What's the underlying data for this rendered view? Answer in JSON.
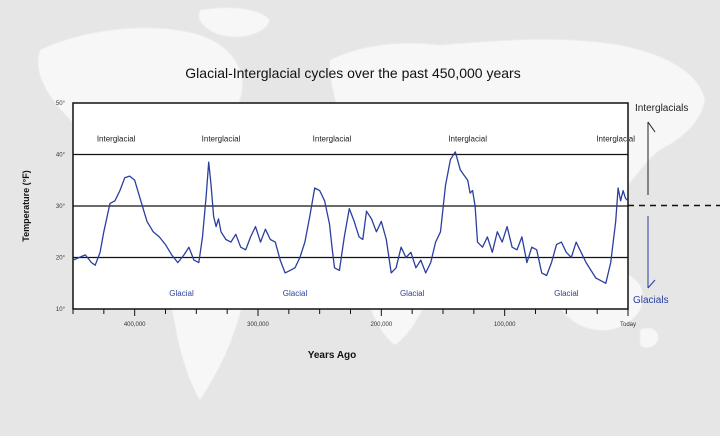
{
  "chart_data": {
    "type": "line",
    "title": "Glacial-Interglacial cycles over the past 450,000 years",
    "xlabel": "Years Ago",
    "ylabel": "Temperature (°F)",
    "xlim": [
      450000,
      0
    ],
    "ylim": [
      10,
      50
    ],
    "xticks": [
      400000,
      300000,
      200000,
      100000,
      0
    ],
    "xtick_labels": [
      "400,000",
      "300,000",
      "200,000",
      "100,000",
      "Today"
    ],
    "yticks": [
      10,
      20,
      30,
      40,
      50
    ],
    "ytick_labels": [
      "10°",
      "20°",
      "30°",
      "40°",
      "50°"
    ],
    "reference_lines": [
      20,
      30,
      40
    ],
    "line_color": "#2b3f9e",
    "annotations": {
      "interglacial": [
        {
          "label": "Interglacial",
          "x": 415000,
          "y": 42.5
        },
        {
          "label": "Interglacial",
          "x": 330000,
          "y": 42.5
        },
        {
          "label": "Interglacial",
          "x": 240000,
          "y": 42.5
        },
        {
          "label": "Interglacial",
          "x": 130000,
          "y": 42.5
        },
        {
          "label": "Interglacial",
          "x": 10000,
          "y": 42.5
        }
      ],
      "glacial": [
        {
          "label": "Glacial",
          "x": 362000,
          "y": 12.5
        },
        {
          "label": "Glacial",
          "x": 270000,
          "y": 12.5
        },
        {
          "label": "Glacial",
          "x": 175000,
          "y": 12.5
        },
        {
          "label": "Glacial",
          "x": 50000,
          "y": 12.5
        }
      ]
    },
    "side_labels": {
      "top": "Interglacials",
      "bottom": "Glacials"
    },
    "x": [
      450000,
      445000,
      440000,
      435000,
      432000,
      428000,
      425000,
      420000,
      416000,
      412000,
      408000,
      404000,
      400000,
      395000,
      390000,
      385000,
      380000,
      375000,
      370000,
      365000,
      360000,
      356000,
      352000,
      348000,
      345000,
      342000,
      340000,
      338000,
      336000,
      334000,
      332000,
      330000,
      326000,
      322000,
      318000,
      314000,
      310000,
      306000,
      302000,
      298000,
      294000,
      290000,
      286000,
      282000,
      278000,
      274000,
      270000,
      266000,
      262000,
      258000,
      254000,
      250000,
      246000,
      242000,
      240000,
      238000,
      234000,
      230000,
      226000,
      222000,
      218000,
      215000,
      212000,
      208000,
      204000,
      200000,
      196000,
      192000,
      188000,
      184000,
      180000,
      176000,
      172000,
      168000,
      164000,
      160000,
      156000,
      152000,
      148000,
      144000,
      140000,
      136000,
      133000,
      130000,
      128000,
      126000,
      124000,
      122000,
      118000,
      114000,
      110000,
      106000,
      102000,
      98000,
      94000,
      90000,
      86000,
      82000,
      78000,
      74000,
      70000,
      66000,
      62000,
      58000,
      54000,
      50000,
      46000,
      42000,
      38000,
      34000,
      30000,
      26000,
      22000,
      18000,
      14000,
      10000,
      8000,
      6000,
      4000,
      2000,
      0
    ],
    "y": [
      19.5,
      20,
      20.5,
      19,
      18.5,
      21,
      25,
      30.5,
      31,
      33,
      35.5,
      35.8,
      35,
      31,
      27,
      25,
      24,
      22.5,
      20.5,
      19,
      20.5,
      22,
      19.5,
      19,
      24,
      32,
      38.5,
      34,
      28,
      26,
      27.5,
      25,
      23.5,
      23,
      24.5,
      22,
      21.5,
      24,
      26,
      23,
      25.5,
      23.5,
      23,
      19.5,
      17,
      17.5,
      18,
      20,
      23,
      28,
      33.5,
      33,
      31,
      26.5,
      22,
      18,
      17.5,
      24,
      29.5,
      27,
      24,
      23.5,
      29,
      27.5,
      25,
      27,
      23.5,
      17,
      18,
      22,
      20,
      21,
      18,
      19.5,
      17,
      19,
      23,
      25,
      34,
      39,
      40.5,
      37,
      36,
      35,
      32.5,
      33,
      30,
      23,
      22,
      24,
      21,
      25,
      23,
      26,
      22,
      21.5,
      24,
      19,
      22,
      21.5,
      17,
      16.5,
      19,
      22.5,
      23,
      21,
      20,
      23,
      21,
      19,
      17.5,
      16,
      15.5,
      15,
      19,
      27,
      33.5,
      31,
      33,
      31.5,
      31
    ]
  }
}
